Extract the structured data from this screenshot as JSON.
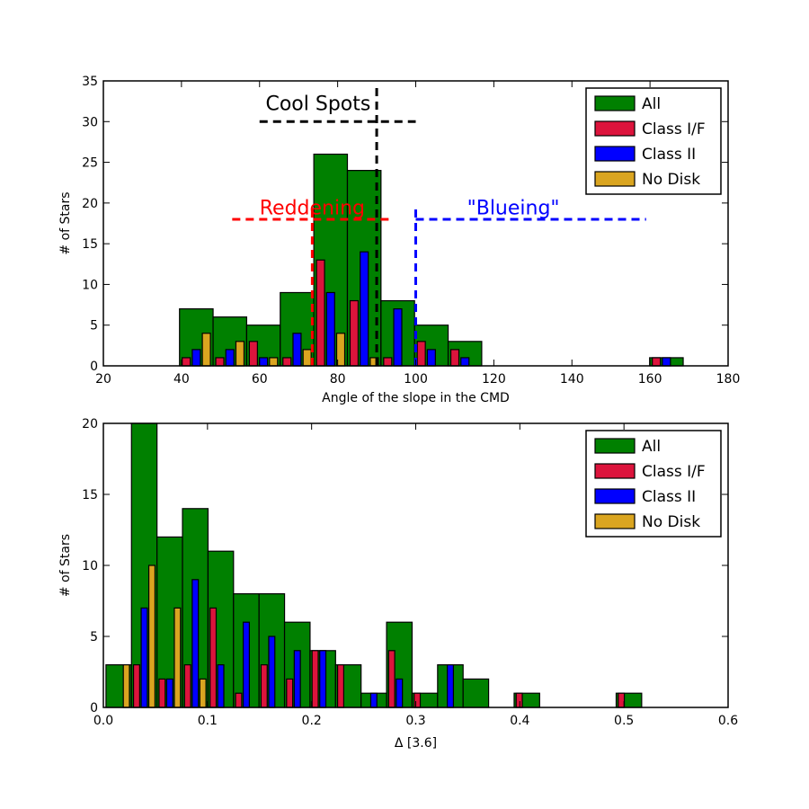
{
  "chart_data": [
    {
      "type": "bar",
      "title": "",
      "xlabel": "Angle of the slope in the CMD",
      "ylabel": "# of Stars",
      "xlim": [
        20,
        180
      ],
      "ylim": [
        0,
        35
      ],
      "xticks": [
        "20",
        "40",
        "60",
        "80",
        "100",
        "120",
        "140",
        "160",
        "180"
      ],
      "yticks": [
        "0",
        "5",
        "10",
        "15",
        "20",
        "25",
        "30",
        "35"
      ],
      "bin_width": 8.6,
      "series": [
        {
          "name": "All",
          "color": "#008000",
          "bins": [
            {
              "x": 39.5,
              "value": 7
            },
            {
              "x": 48.1,
              "value": 6
            },
            {
              "x": 56.7,
              "value": 5
            },
            {
              "x": 65.3,
              "value": 9
            },
            {
              "x": 73.9,
              "value": 26
            },
            {
              "x": 82.5,
              "value": 24
            },
            {
              "x": 91.1,
              "value": 8
            },
            {
              "x": 99.7,
              "value": 5
            },
            {
              "x": 108.3,
              "value": 3
            },
            {
              "x": 159.9,
              "value": 1
            }
          ]
        },
        {
          "name": "Class I/F",
          "color": "#dc143c",
          "bins": [
            {
              "x": 39.5,
              "value": 1
            },
            {
              "x": 48.1,
              "value": 1
            },
            {
              "x": 56.7,
              "value": 3
            },
            {
              "x": 65.3,
              "value": 1
            },
            {
              "x": 73.9,
              "value": 13
            },
            {
              "x": 82.5,
              "value": 8
            },
            {
              "x": 91.1,
              "value": 1
            },
            {
              "x": 99.7,
              "value": 3
            },
            {
              "x": 108.3,
              "value": 2
            },
            {
              "x": 159.9,
              "value": 1
            }
          ]
        },
        {
          "name": "Class II",
          "color": "#0000ff",
          "bins": [
            {
              "x": 39.5,
              "value": 2
            },
            {
              "x": 48.1,
              "value": 2
            },
            {
              "x": 56.7,
              "value": 1
            },
            {
              "x": 65.3,
              "value": 4
            },
            {
              "x": 73.9,
              "value": 9
            },
            {
              "x": 82.5,
              "value": 14
            },
            {
              "x": 91.1,
              "value": 7
            },
            {
              "x": 99.7,
              "value": 2
            },
            {
              "x": 108.3,
              "value": 1
            },
            {
              "x": 159.9,
              "value": 1
            }
          ]
        },
        {
          "name": "No Disk",
          "color": "#daa520",
          "bins": [
            {
              "x": 39.5,
              "value": 4
            },
            {
              "x": 48.1,
              "value": 3
            },
            {
              "x": 56.7,
              "value": 1
            },
            {
              "x": 65.3,
              "value": 2
            },
            {
              "x": 73.9,
              "value": 4
            },
            {
              "x": 82.5,
              "value": 1
            },
            {
              "x": 91.1,
              "value": 0
            },
            {
              "x": 99.7,
              "value": 0
            },
            {
              "x": 108.3,
              "value": 0
            },
            {
              "x": 159.9,
              "value": 0
            }
          ]
        }
      ],
      "legend": [
        "All",
        "Class I/F",
        "Class II",
        "No Disk"
      ],
      "legend_position": "top-right",
      "annotations": [
        {
          "text": "Cool Spots",
          "color": "#000000",
          "x": 75,
          "y": 31.4,
          "line_h": {
            "x1": 60,
            "x2": 100,
            "y": 30
          },
          "line_v": {
            "x": 90,
            "y1": 0,
            "y2": 34.5
          }
        },
        {
          "text": "Reddening",
          "color": "#ff0000",
          "x": 73.5,
          "y": 18.6,
          "line_h": {
            "x1": 53,
            "x2": 94,
            "y": 18
          },
          "line_v": {
            "x": 73.5,
            "y1": 0,
            "y2": 19.5
          }
        },
        {
          "text": "\"Blueing\"",
          "color": "#0000ff",
          "x": 125,
          "y": 18.6,
          "line_h": {
            "x1": 100,
            "x2": 159,
            "y": 18
          },
          "line_v": {
            "x": 100,
            "y1": 0,
            "y2": 19.5
          }
        }
      ]
    },
    {
      "type": "bar",
      "title": "",
      "xlabel": "Δ [3.6]",
      "ylabel": "# of Stars",
      "xlim": [
        0,
        0.6
      ],
      "ylim": [
        0,
        20
      ],
      "xticks": [
        "0.0",
        "0.1",
        "0.2",
        "0.3",
        "0.4",
        "0.5",
        "0.6"
      ],
      "yticks": [
        "0",
        "5",
        "10",
        "15",
        "20"
      ],
      "bin_width": 0.0245,
      "series": [
        {
          "name": "All",
          "color": "#008000",
          "bins": [
            {
              "x": 0.0025,
              "value": 3
            },
            {
              "x": 0.027,
              "value": 20
            },
            {
              "x": 0.0515,
              "value": 12
            },
            {
              "x": 0.076,
              "value": 14
            },
            {
              "x": 0.1005,
              "value": 11
            },
            {
              "x": 0.125,
              "value": 8
            },
            {
              "x": 0.1495,
              "value": 8
            },
            {
              "x": 0.174,
              "value": 6
            },
            {
              "x": 0.1985,
              "value": 4
            },
            {
              "x": 0.223,
              "value": 3
            },
            {
              "x": 0.2475,
              "value": 1
            },
            {
              "x": 0.272,
              "value": 6
            },
            {
              "x": 0.2965,
              "value": 1
            },
            {
              "x": 0.321,
              "value": 3
            },
            {
              "x": 0.3455,
              "value": 2
            },
            {
              "x": 0.3945,
              "value": 1
            },
            {
              "x": 0.4925,
              "value": 1
            }
          ]
        },
        {
          "name": "Class I/F",
          "color": "#dc143c",
          "bins": [
            {
              "x": 0.0025,
              "value": 0
            },
            {
              "x": 0.027,
              "value": 3
            },
            {
              "x": 0.0515,
              "value": 2
            },
            {
              "x": 0.076,
              "value": 3
            },
            {
              "x": 0.1005,
              "value": 7
            },
            {
              "x": 0.125,
              "value": 1
            },
            {
              "x": 0.1495,
              "value": 3
            },
            {
              "x": 0.174,
              "value": 2
            },
            {
              "x": 0.1985,
              "value": 4
            },
            {
              "x": 0.223,
              "value": 3
            },
            {
              "x": 0.2475,
              "value": 0
            },
            {
              "x": 0.272,
              "value": 4
            },
            {
              "x": 0.2965,
              "value": 1
            },
            {
              "x": 0.321,
              "value": 0
            },
            {
              "x": 0.3455,
              "value": 0
            },
            {
              "x": 0.3945,
              "value": 1
            },
            {
              "x": 0.4925,
              "value": 1
            }
          ]
        },
        {
          "name": "Class II",
          "color": "#0000ff",
          "bins": [
            {
              "x": 0.0025,
              "value": 0
            },
            {
              "x": 0.027,
              "value": 7
            },
            {
              "x": 0.0515,
              "value": 2
            },
            {
              "x": 0.076,
              "value": 9
            },
            {
              "x": 0.1005,
              "value": 3
            },
            {
              "x": 0.125,
              "value": 6
            },
            {
              "x": 0.1495,
              "value": 5
            },
            {
              "x": 0.174,
              "value": 4
            },
            {
              "x": 0.1985,
              "value": 4
            },
            {
              "x": 0.223,
              "value": 0
            },
            {
              "x": 0.2475,
              "value": 1
            },
            {
              "x": 0.272,
              "value": 2
            },
            {
              "x": 0.2965,
              "value": 0
            },
            {
              "x": 0.321,
              "value": 3
            },
            {
              "x": 0.3455,
              "value": 0
            },
            {
              "x": 0.3945,
              "value": 0
            },
            {
              "x": 0.4925,
              "value": 0
            }
          ]
        },
        {
          "name": "No Disk",
          "color": "#daa520",
          "bins": [
            {
              "x": 0.0025,
              "value": 3
            },
            {
              "x": 0.027,
              "value": 10
            },
            {
              "x": 0.0515,
              "value": 7
            },
            {
              "x": 0.076,
              "value": 2
            },
            {
              "x": 0.1005,
              "value": 0
            },
            {
              "x": 0.125,
              "value": 0
            },
            {
              "x": 0.1495,
              "value": 0
            },
            {
              "x": 0.174,
              "value": 0
            },
            {
              "x": 0.1985,
              "value": 0
            },
            {
              "x": 0.223,
              "value": 0
            },
            {
              "x": 0.2475,
              "value": 0
            },
            {
              "x": 0.272,
              "value": 0
            },
            {
              "x": 0.2965,
              "value": 0
            },
            {
              "x": 0.321,
              "value": 0
            },
            {
              "x": 0.3455,
              "value": 0
            },
            {
              "x": 0.3945,
              "value": 0
            },
            {
              "x": 0.4925,
              "value": 0
            }
          ]
        }
      ],
      "legend": [
        "All",
        "Class I/F",
        "Class II",
        "No Disk"
      ],
      "legend_position": "top-right",
      "annotations": []
    }
  ]
}
